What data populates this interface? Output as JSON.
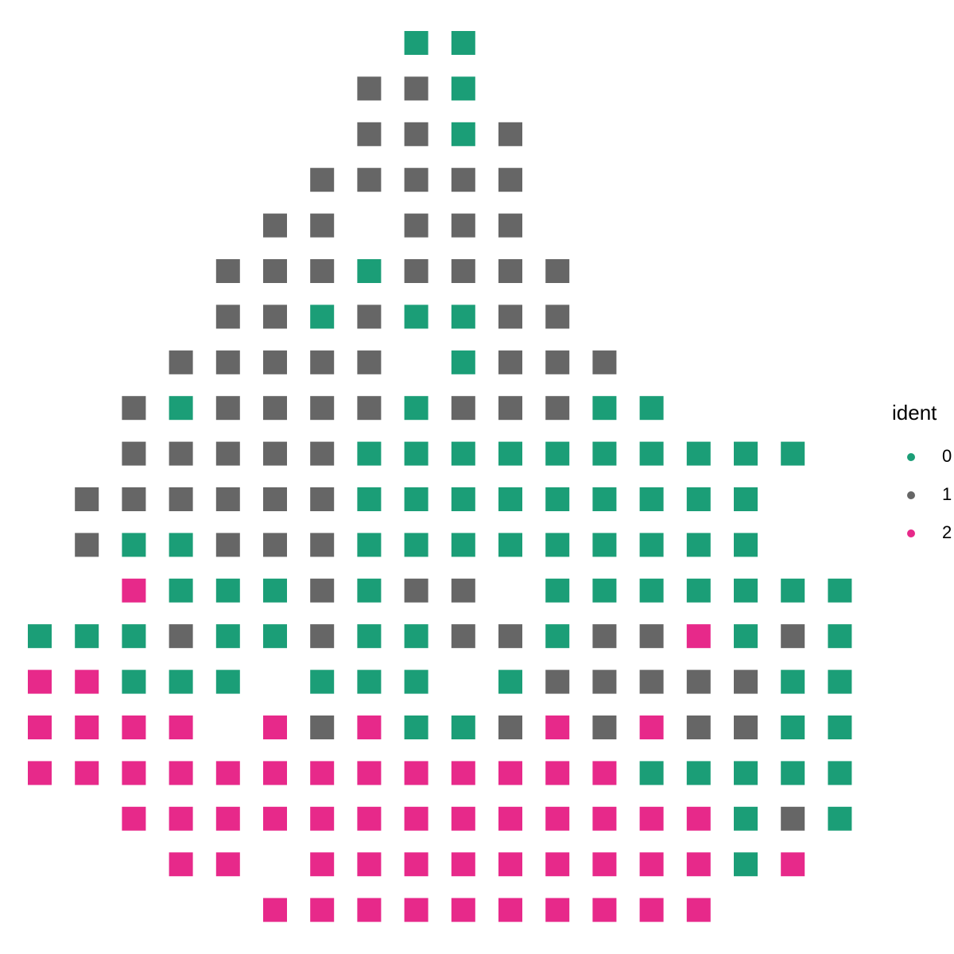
{
  "chart_data": {
    "type": "tile",
    "legend_title": "ident",
    "series": [
      {
        "name": "0",
        "color": "#1b9e77"
      },
      {
        "name": "1",
        "color": "#666666"
      },
      {
        "name": "2",
        "color": "#e7298a"
      }
    ],
    "grid": [
      [
        null,
        null,
        null,
        null,
        null,
        null,
        null,
        null,
        0,
        0,
        null,
        null,
        null,
        null,
        null,
        null,
        null,
        null
      ],
      [
        null,
        null,
        null,
        null,
        null,
        null,
        null,
        1,
        1,
        0,
        null,
        null,
        null,
        null,
        null,
        null,
        null,
        null
      ],
      [
        null,
        null,
        null,
        null,
        null,
        null,
        null,
        1,
        1,
        0,
        1,
        null,
        null,
        null,
        null,
        null,
        null,
        null
      ],
      [
        null,
        null,
        null,
        null,
        null,
        null,
        1,
        1,
        1,
        1,
        1,
        null,
        null,
        null,
        null,
        null,
        null,
        null
      ],
      [
        null,
        null,
        null,
        null,
        null,
        1,
        1,
        null,
        1,
        1,
        1,
        null,
        null,
        null,
        null,
        null,
        null,
        null
      ],
      [
        null,
        null,
        null,
        null,
        1,
        1,
        1,
        0,
        1,
        1,
        1,
        1,
        null,
        null,
        null,
        null,
        null,
        null
      ],
      [
        null,
        null,
        null,
        null,
        1,
        1,
        0,
        1,
        0,
        0,
        1,
        1,
        null,
        null,
        null,
        null,
        null,
        null
      ],
      [
        null,
        null,
        null,
        1,
        1,
        1,
        1,
        1,
        null,
        0,
        1,
        1,
        1,
        null,
        null,
        null,
        null,
        null
      ],
      [
        null,
        null,
        1,
        0,
        1,
        1,
        1,
        1,
        0,
        1,
        1,
        1,
        0,
        0,
        null,
        null,
        null,
        null
      ],
      [
        null,
        null,
        1,
        1,
        1,
        1,
        1,
        0,
        0,
        0,
        0,
        0,
        0,
        0,
        0,
        0,
        0,
        null
      ],
      [
        null,
        1,
        1,
        1,
        1,
        1,
        1,
        0,
        0,
        0,
        0,
        0,
        0,
        0,
        0,
        0,
        null,
        null
      ],
      [
        null,
        1,
        0,
        0,
        1,
        1,
        1,
        0,
        0,
        0,
        0,
        0,
        0,
        0,
        0,
        0,
        null,
        null
      ],
      [
        null,
        null,
        2,
        0,
        0,
        0,
        1,
        0,
        1,
        1,
        null,
        0,
        0,
        0,
        0,
        0,
        0,
        0
      ],
      [
        0,
        0,
        0,
        1,
        0,
        0,
        1,
        0,
        0,
        1,
        1,
        0,
        1,
        1,
        2,
        0,
        1,
        0
      ],
      [
        2,
        2,
        0,
        0,
        0,
        null,
        0,
        0,
        0,
        null,
        0,
        1,
        1,
        1,
        1,
        1,
        0,
        0
      ],
      [
        2,
        2,
        2,
        2,
        null,
        2,
        1,
        2,
        0,
        0,
        1,
        2,
        1,
        2,
        1,
        1,
        0,
        0
      ],
      [
        2,
        2,
        2,
        2,
        2,
        2,
        2,
        2,
        2,
        2,
        2,
        2,
        2,
        0,
        0,
        0,
        0,
        0
      ],
      [
        null,
        null,
        2,
        2,
        2,
        2,
        2,
        2,
        2,
        2,
        2,
        2,
        2,
        2,
        2,
        0,
        1,
        0
      ],
      [
        null,
        null,
        null,
        2,
        2,
        null,
        2,
        2,
        2,
        2,
        2,
        2,
        2,
        2,
        2,
        0,
        2,
        null
      ],
      [
        null,
        null,
        null,
        null,
        null,
        2,
        2,
        2,
        2,
        2,
        2,
        2,
        2,
        2,
        2,
        null,
        null,
        null
      ]
    ]
  }
}
